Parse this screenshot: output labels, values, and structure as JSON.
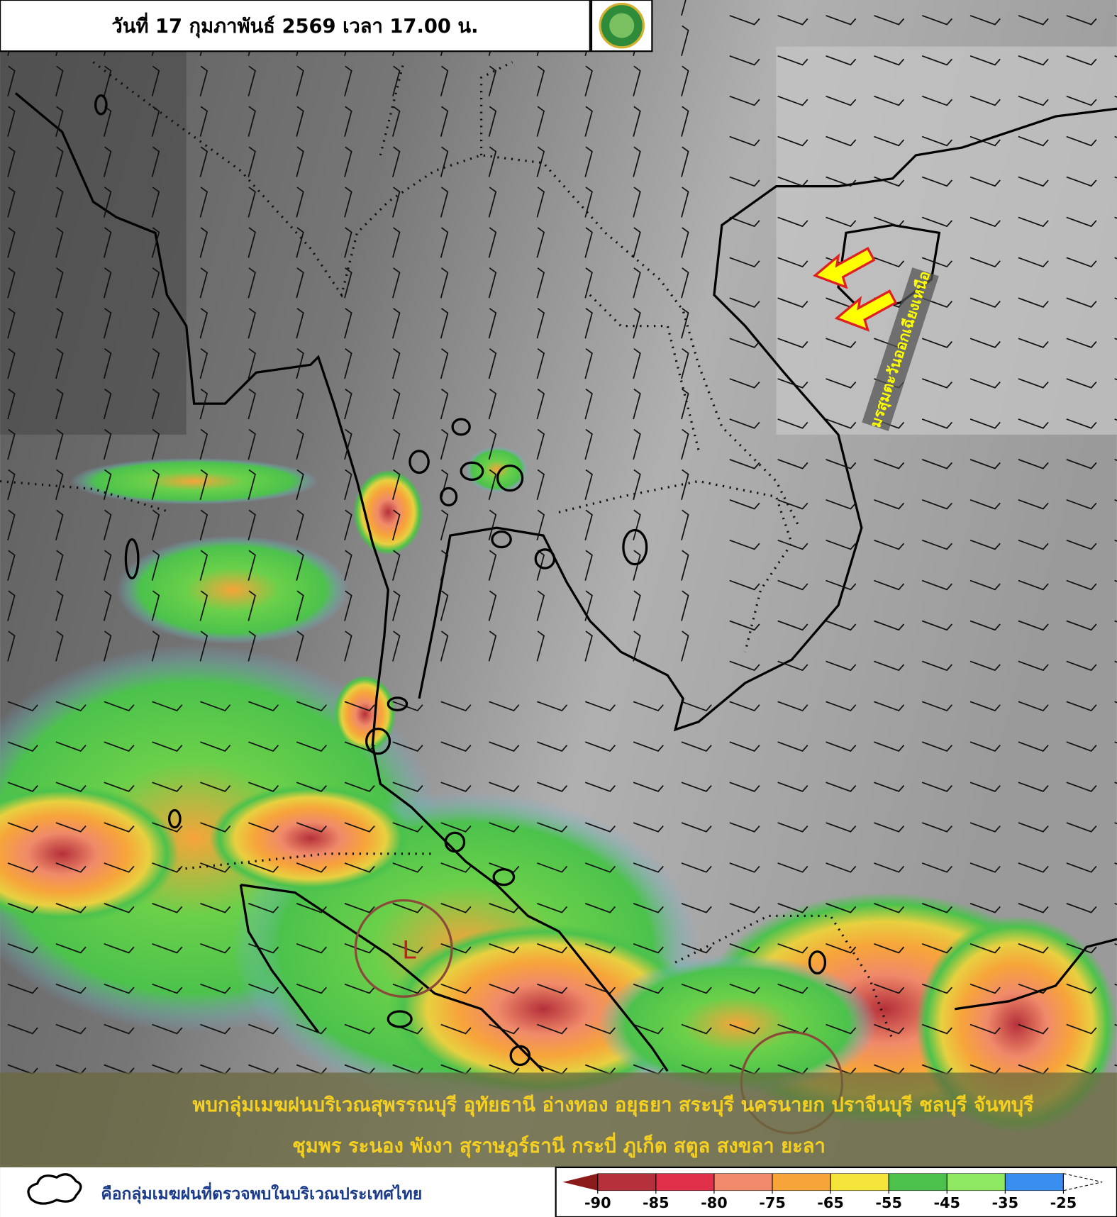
{
  "header": {
    "title": "วันที่ 17 กุมภาพันธ์ 2569 เวลา 17.00 น."
  },
  "annotations": {
    "monsoon": "มรสุมตะวันออกเฉียงเหนือ",
    "low": "L"
  },
  "caption": {
    "lines": [
      "พบกลุ่มเมฆฝนบริเวณสุพรรณบุรี อุทัยธานี อ่างทอง อยุธยา สระบุรี นครนายก ปราจีนบุรี ชลบุรี จันทบุรี",
      "ชุมพร ระนอง พังงา สุราษฎร์ธานี กระบี่ ภูเก็ต สตูล สงขลา ยะลา"
    ]
  },
  "legend": {
    "label": "คือกลุ่มเมฆฝนที่ตรวจพบในบริเวณประเทศไทย"
  },
  "color_scale": {
    "ticks": [
      -90,
      -85,
      -80,
      -75,
      -65,
      -55,
      -45,
      -35,
      -25
    ],
    "colors": [
      "#8b1a1a",
      "#b5303a",
      "#e0304a",
      "#f08a6a",
      "#f7a43a",
      "#f5e43a",
      "#4cc24c",
      "#8ee860",
      "#3a8ef0",
      "#ffffff"
    ]
  }
}
